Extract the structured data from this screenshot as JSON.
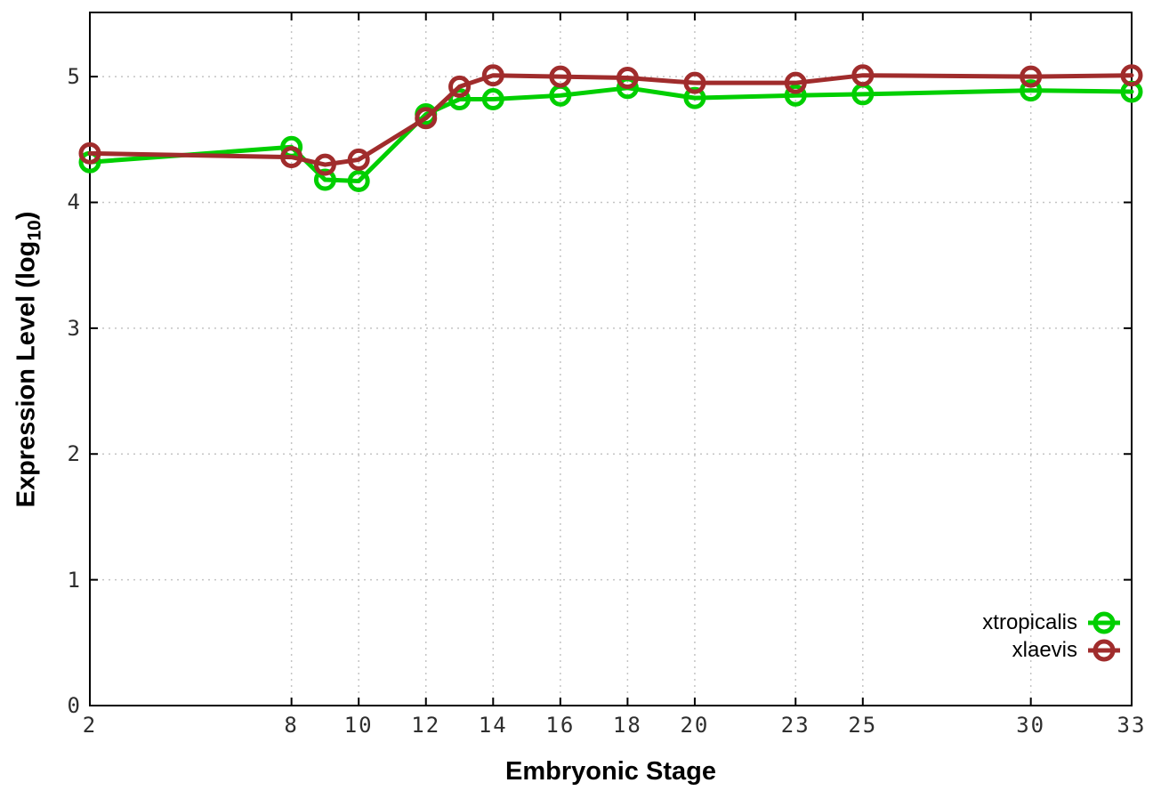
{
  "chart_data": {
    "type": "line",
    "title": "",
    "xlabel": "Embryonic Stage",
    "ylabel": "Expression Level (log10)",
    "ylabel_parts": {
      "main": "Expression Level (log",
      "sub": "10",
      "end": ")"
    },
    "x": [
      2,
      8,
      9,
      10,
      12,
      13,
      14,
      16,
      18,
      20,
      23,
      25,
      30,
      33
    ],
    "series": [
      {
        "name": "xtropicalis",
        "color": "#00cf00",
        "values": [
          4.32,
          4.44,
          4.18,
          4.17,
          4.7,
          4.82,
          4.82,
          4.85,
          4.91,
          4.83,
          4.85,
          4.86,
          4.89,
          4.88
        ]
      },
      {
        "name": "xlaevis",
        "color": "#a02c2c",
        "values": [
          4.39,
          4.36,
          4.3,
          4.34,
          4.67,
          4.92,
          5.01,
          5.0,
          4.99,
          4.95,
          4.95,
          5.01,
          5.0,
          5.01
        ]
      }
    ],
    "xticks": [
      2,
      8,
      10,
      12,
      14,
      16,
      18,
      20,
      23,
      25,
      30,
      33
    ],
    "yticks": [
      0,
      1,
      2,
      3,
      4,
      5
    ],
    "x_domain": [
      2,
      33
    ],
    "y_domain": [
      0,
      5.51
    ],
    "grid": true,
    "legend_position": "bottom-right-inside",
    "marker": "open-circle",
    "colors": {
      "grid": "#c4c4c4",
      "axis": "#000000",
      "tick_text": "#2e2e2e"
    }
  }
}
